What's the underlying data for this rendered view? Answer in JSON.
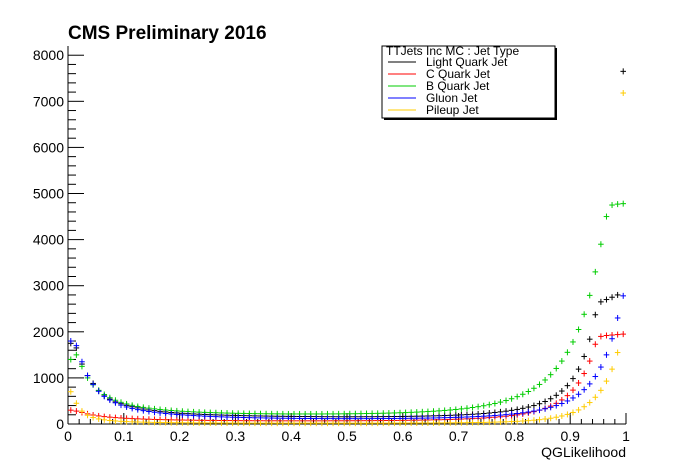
{
  "chart_data": {
    "type": "scatter",
    "title": "CMS Preliminary 2016",
    "xlabel": "QGLikelihood",
    "ylabel": "",
    "xlim": [
      0,
      1
    ],
    "ylim": [
      0,
      8200
    ],
    "x_ticks": [
      "0",
      "0.1",
      "0.2",
      "0.3",
      "0.4",
      "0.5",
      "0.6",
      "0.7",
      "0.8",
      "0.9",
      "1"
    ],
    "y_ticks": [
      "0",
      "1000",
      "2000",
      "3000",
      "4000",
      "5000",
      "6000",
      "7000",
      "8000"
    ],
    "legend_title": "TTJets Inc MC : Jet Type",
    "legend_position": "top-right",
    "grid": false,
    "x": [
      0.005,
      0.015,
      0.025,
      0.035,
      0.045,
      0.055,
      0.065,
      0.075,
      0.085,
      0.095,
      0.105,
      0.115,
      0.125,
      0.135,
      0.145,
      0.155,
      0.165,
      0.175,
      0.185,
      0.195,
      0.205,
      0.215,
      0.225,
      0.235,
      0.245,
      0.255,
      0.265,
      0.275,
      0.285,
      0.295,
      0.305,
      0.315,
      0.325,
      0.335,
      0.345,
      0.355,
      0.365,
      0.375,
      0.385,
      0.395,
      0.405,
      0.415,
      0.425,
      0.435,
      0.445,
      0.455,
      0.465,
      0.475,
      0.485,
      0.495,
      0.505,
      0.515,
      0.525,
      0.535,
      0.545,
      0.555,
      0.565,
      0.575,
      0.585,
      0.595,
      0.605,
      0.615,
      0.625,
      0.635,
      0.645,
      0.655,
      0.665,
      0.675,
      0.685,
      0.695,
      0.705,
      0.715,
      0.725,
      0.735,
      0.745,
      0.755,
      0.765,
      0.775,
      0.785,
      0.795,
      0.805,
      0.815,
      0.825,
      0.835,
      0.845,
      0.855,
      0.865,
      0.875,
      0.885,
      0.895,
      0.905,
      0.915,
      0.925,
      0.935,
      0.945,
      0.955,
      0.965,
      0.975,
      0.985,
      0.995
    ],
    "series": [
      {
        "name": "Light Quark Jet",
        "color": "#000000",
        "values": [
          1750,
          1650,
          1300,
          1050,
          880,
          720,
          610,
          540,
          480,
          440,
          405,
          375,
          350,
          325,
          305,
          290,
          275,
          262,
          250,
          240,
          232,
          225,
          218,
          212,
          207,
          202,
          198,
          194,
          190,
          187,
          184,
          181,
          179,
          176,
          174,
          172,
          170,
          168,
          167,
          165,
          164,
          163,
          162,
          161,
          160,
          159,
          158,
          158,
          157,
          157,
          157,
          157,
          157,
          158,
          158,
          159,
          160,
          161,
          162,
          163,
          165,
          167,
          169,
          171,
          174,
          177,
          180,
          184,
          188,
          193,
          198,
          204,
          211,
          219,
          228,
          238,
          250,
          263,
          278,
          296,
          316,
          340,
          368,
          400,
          440,
          488,
          548,
          622,
          715,
          832,
          985,
          1190,
          1465,
          1840,
          2370,
          2650,
          2700,
          2750,
          2800,
          7650
        ]
      },
      {
        "name": "C Quark Jet",
        "color": "#ff0000",
        "values": [
          300,
          280,
          250,
          220,
          195,
          175,
          160,
          148,
          138,
          130,
          123,
          117,
          112,
          107,
          103,
          99,
          96,
          93,
          90,
          88,
          86,
          84,
          82,
          80,
          79,
          78,
          77,
          76,
          75,
          74,
          73,
          72,
          72,
          71,
          71,
          70,
          70,
          70,
          69,
          69,
          69,
          69,
          69,
          69,
          69,
          69,
          69,
          70,
          70,
          70,
          71,
          71,
          72,
          72,
          73,
          74,
          75,
          76,
          77,
          78,
          80,
          81,
          83,
          85,
          87,
          90,
          92,
          95,
          99,
          103,
          107,
          112,
          117,
          123,
          130,
          138,
          147,
          157,
          169,
          183,
          199,
          218,
          241,
          268,
          300,
          340,
          388,
          448,
          522,
          615,
          735,
          890,
          1095,
          1365,
          1730,
          1900,
          1920,
          1930,
          1940,
          1950
        ]
      },
      {
        "name": "B Quark Jet",
        "color": "#00cc00",
        "values": [
          1400,
          1500,
          1250,
          1000,
          850,
          730,
          640,
          570,
          515,
          470,
          435,
          405,
          380,
          360,
          343,
          328,
          315,
          303,
          293,
          284,
          276,
          269,
          263,
          257,
          252,
          248,
          244,
          240,
          237,
          234,
          231,
          229,
          227,
          225,
          223,
          222,
          221,
          220,
          219,
          218,
          218,
          218,
          218,
          218,
          218,
          218,
          219,
          219,
          220,
          221,
          222,
          223,
          225,
          227,
          229,
          231,
          234,
          237,
          240,
          244,
          248,
          253,
          258,
          264,
          270,
          277,
          285,
          294,
          304,
          315,
          328,
          342,
          358,
          376,
          396,
          419,
          445,
          475,
          509,
          548,
          593,
          645,
          705,
          775,
          858,
          955,
          1070,
          1205,
          1365,
          1555,
          1780,
          2050,
          2380,
          2790,
          3300,
          3900,
          4500,
          4750,
          4770,
          4780
        ]
      },
      {
        "name": "Gluon Jet",
        "color": "#0000ff",
        "values": [
          1800,
          1700,
          1350,
          1050,
          860,
          710,
          600,
          520,
          460,
          410,
          370,
          338,
          312,
          290,
          271,
          255,
          241,
          228,
          217,
          207,
          198,
          190,
          183,
          176,
          170,
          165,
          160,
          155,
          151,
          147,
          144,
          141,
          138,
          135,
          133,
          131,
          129,
          127,
          125,
          124,
          122,
          121,
          120,
          119,
          118,
          118,
          117,
          117,
          116,
          116,
          116,
          116,
          116,
          117,
          117,
          118,
          118,
          119,
          120,
          121,
          122,
          124,
          125,
          127,
          129,
          131,
          134,
          137,
          140,
          144,
          148,
          152,
          157,
          163,
          169,
          176,
          184,
          193,
          203,
          215,
          228,
          243,
          260,
          280,
          303,
          330,
          362,
          400,
          445,
          500,
          565,
          645,
          745,
          870,
          1030,
          1235,
          1500,
          1850,
          2300,
          2780
        ]
      },
      {
        "name": "Pileup Jet",
        "color": "#ffcc00",
        "values": [
          700,
          450,
          280,
          190,
          140,
          110,
          90,
          76,
          66,
          58,
          52,
          47,
          43,
          40,
          37,
          35,
          33,
          31,
          29,
          28,
          27,
          26,
          25,
          24,
          23,
          22,
          22,
          21,
          21,
          20,
          20,
          20,
          19,
          19,
          19,
          19,
          19,
          18,
          18,
          18,
          18,
          18,
          18,
          18,
          18,
          18,
          18,
          18,
          18,
          18,
          18,
          18,
          18,
          18,
          19,
          19,
          19,
          19,
          20,
          20,
          20,
          21,
          21,
          22,
          22,
          23,
          24,
          25,
          26,
          27,
          28,
          30,
          31,
          33,
          35,
          38,
          41,
          44,
          48,
          53,
          58,
          65,
          73,
          82,
          94,
          108,
          125,
          147,
          174,
          208,
          250,
          305,
          375,
          465,
          580,
          730,
          930,
          1190,
          1550,
          7180
        ]
      }
    ]
  }
}
